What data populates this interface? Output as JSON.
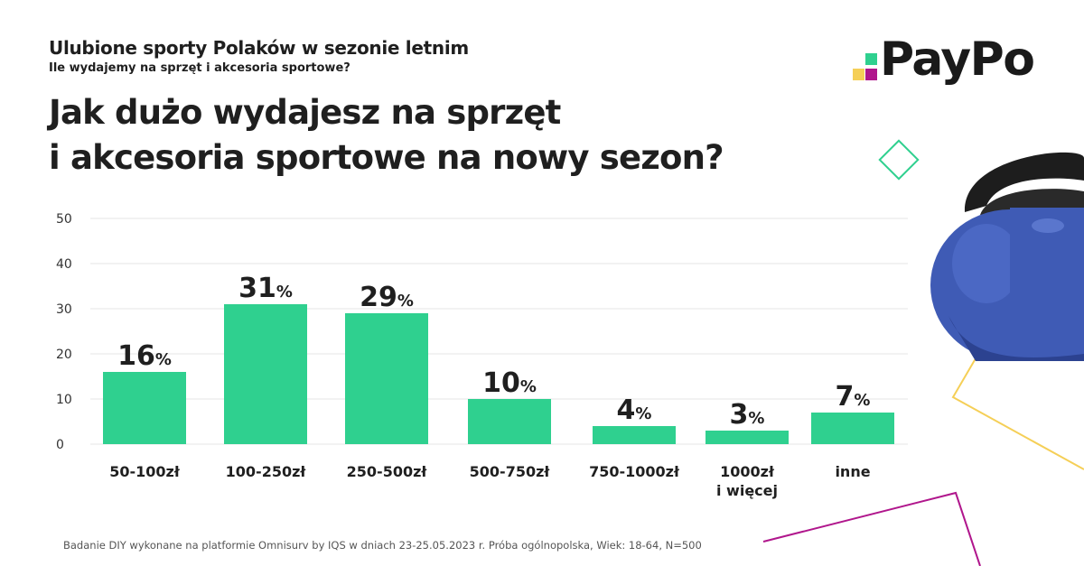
{
  "header": {
    "title_highlight": "Ulubione sporty",
    "title_rest": " Polaków w sezonie letnim",
    "subtitle": "Ile wydajemy na sprzęt i akcesoria sportowe?"
  },
  "question": {
    "line1": "Jak dużo wydajesz na sprzęt",
    "line2": "i akcesoria sportowe na nowy sezon?"
  },
  "logo": {
    "text": "PayPo"
  },
  "colors": {
    "accent": "#2fd08f",
    "purple": "#b0168c",
    "yellow": "#f5cf57",
    "grid": "#e6e6e6"
  },
  "chart_data": {
    "type": "bar",
    "categories": [
      [
        "50-100zł"
      ],
      [
        "100-250zł"
      ],
      [
        "250-500zł"
      ],
      [
        "500-750zł"
      ],
      [
        "750-1000zł"
      ],
      [
        "1000zł",
        "i więcej"
      ],
      [
        "inne"
      ]
    ],
    "values": [
      16,
      31,
      29,
      10,
      4,
      3,
      7
    ],
    "value_suffix": "%",
    "yticks": [
      0,
      10,
      20,
      30,
      40,
      50
    ],
    "ylim": [
      0,
      50
    ],
    "grid": true
  },
  "footnote": "Badanie DIY wykonane na platformie Omnisurv by IQS w dniach 23-25.05.2023 r. Próba ogólnopolska, Wiek: 18-64, N=500",
  "decorations": [
    "kettlebell-image",
    "outline-diamond-green",
    "outline-diamond-yellow",
    "outline-triangle-purple"
  ]
}
